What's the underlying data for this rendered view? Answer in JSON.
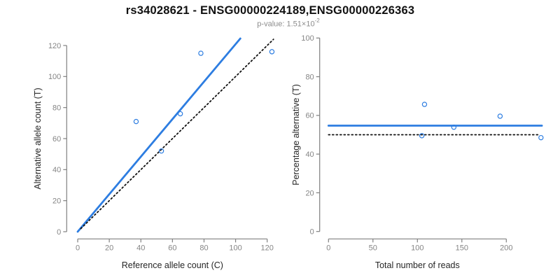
{
  "title": "rs34028621 - ENSG00000224189,ENSG00000226363",
  "subtitle": {
    "text": "p-value: 1.51×10",
    "exponent": "-2"
  },
  "colors": {
    "blue": "#2d7de1",
    "black": "#111111",
    "axis": "#808080",
    "tick_label": "#858585",
    "axis_label": "#262626",
    "background": "#ffffff"
  },
  "chart_data": [
    {
      "id": "allele-counts",
      "type": "scatter",
      "xlabel": "Reference allele count (C)",
      "ylabel": "Alternative allele count (T)",
      "xticks": [
        0,
        20,
        40,
        60,
        80,
        100,
        120
      ],
      "yticks": [
        0,
        20,
        40,
        60,
        80,
        100,
        120
      ],
      "xlim": [
        0,
        127
      ],
      "ylim": [
        0,
        125
      ],
      "grid": false,
      "points": [
        [
          37,
          71
        ],
        [
          53,
          52
        ],
        [
          65,
          76
        ],
        [
          78,
          115
        ],
        [
          123,
          116
        ]
      ],
      "lines": [
        {
          "name": "regression-line",
          "style": "solid",
          "color_key": "blue",
          "from": [
            0,
            0
          ],
          "to": [
            103,
            124.5
          ]
        },
        {
          "name": "identity-line",
          "style": "dotted",
          "color_key": "black",
          "from": [
            2,
            2
          ],
          "to": [
            124,
            124
          ]
        }
      ]
    },
    {
      "id": "percentage-reads",
      "type": "scatter",
      "xlabel": "Total number of reads",
      "ylabel": "Percentage alternative (T)",
      "xticks": [
        0,
        50,
        100,
        150,
        200
      ],
      "yticks": [
        0,
        20,
        40,
        60,
        80,
        100
      ],
      "xlim": [
        0,
        243
      ],
      "ylim": [
        0,
        100
      ],
      "grid": false,
      "points": [
        [
          108,
          65.7
        ],
        [
          105,
          49.5
        ],
        [
          141,
          53.9
        ],
        [
          193,
          59.6
        ],
        [
          239,
          48.5
        ]
      ],
      "lines": [
        {
          "name": "mean-line",
          "style": "solid",
          "color_key": "blue",
          "from": [
            0,
            54.7
          ],
          "to": [
            240,
            54.7
          ]
        },
        {
          "name": "null-line",
          "style": "dotted",
          "color_key": "black",
          "from": [
            0,
            50
          ],
          "to": [
            237,
            50
          ]
        }
      ]
    }
  ]
}
